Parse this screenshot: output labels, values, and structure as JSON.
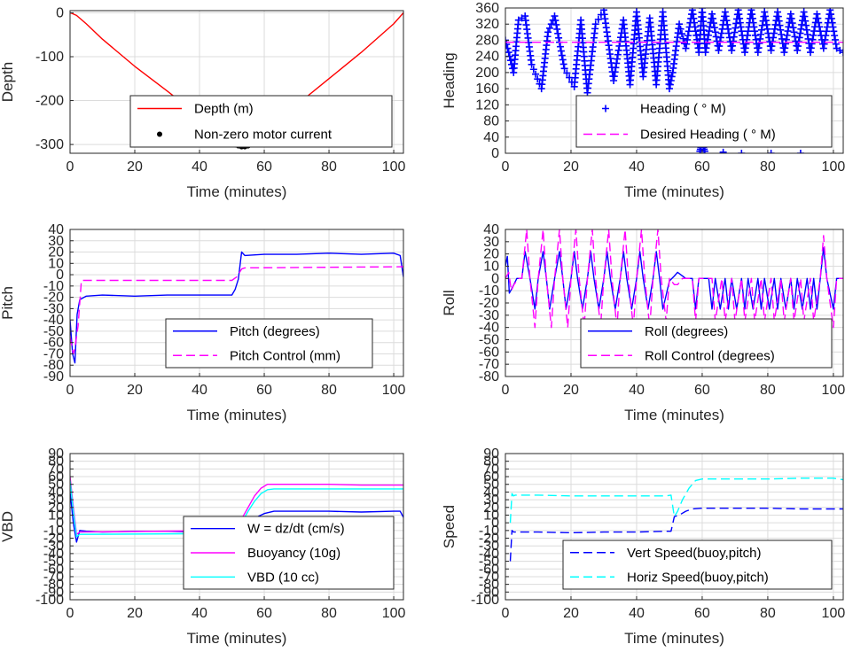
{
  "chart_data": [
    {
      "type": "line",
      "ylabel": "Depth",
      "xlabel": "Time (minutes)",
      "xlim": [
        0,
        103
      ],
      "ylim": [
        -320,
        5
      ],
      "xticks": [
        0,
        20,
        40,
        60,
        80,
        100
      ],
      "yticks": [
        0,
        -100,
        -200,
        -300
      ],
      "grid": true,
      "legend_position": "bottom-center",
      "series": [
        {
          "name": "Depth (m)",
          "style": "solid",
          "color": "#ff0000",
          "x": [
            0,
            0.5,
            2,
            5,
            10,
            20,
            30,
            40,
            48,
            51,
            53,
            54,
            55,
            58,
            60,
            70,
            80,
            90,
            100,
            103
          ],
          "y": [
            0,
            -1,
            -6,
            -25,
            -60,
            -122,
            -178,
            -236,
            -282,
            -300,
            -305,
            -303,
            -300,
            -288,
            -275,
            -210,
            -150,
            -90,
            -25,
            0
          ]
        },
        {
          "name": "Non-zero motor current",
          "style": "dots",
          "color": "#000000",
          "x": [
            51,
            52,
            53,
            54,
            55,
            56,
            57,
            58.5
          ],
          "y": [
            -301,
            -303,
            -305,
            -305,
            -303,
            -300,
            -296,
            -288
          ]
        }
      ]
    },
    {
      "type": "line",
      "ylabel": "Heading",
      "xlabel": "Time (minutes)",
      "xlim": [
        0,
        103
      ],
      "ylim": [
        0,
        360
      ],
      "xticks": [
        0,
        20,
        40,
        60,
        80,
        100
      ],
      "yticks": [
        0,
        40,
        80,
        120,
        160,
        200,
        240,
        280,
        320,
        360
      ],
      "grid": true,
      "legend_position": "bottom-right",
      "series": [
        {
          "name": "Heading ( ° M)",
          "style": "plus",
          "color": "#0000ff",
          "x": [
            0,
            1,
            2.5,
            4,
            6,
            8,
            11,
            13,
            15,
            18,
            21,
            23,
            25,
            27.5,
            30,
            33,
            36,
            38,
            40,
            42,
            44,
            46,
            48,
            50,
            51,
            53,
            55,
            57,
            59,
            60,
            61,
            63,
            65,
            67,
            69,
            71,
            73,
            75,
            77,
            79,
            81,
            83,
            85,
            87,
            89,
            91,
            93,
            95,
            97,
            99,
            101,
            103
          ],
          "y": [
            280,
            250,
            200,
            330,
            340,
            220,
            160,
            300,
            340,
            210,
            165,
            330,
            150,
            320,
            355,
            180,
            330,
            170,
            350,
            190,
            335,
            170,
            350,
            160,
            200,
            320,
            260,
            355,
            250,
            360,
            250,
            345,
            255,
            350,
            255,
            355,
            250,
            355,
            250,
            350,
            255,
            350,
            250,
            345,
            255,
            350,
            250,
            345,
            260,
            355,
            260,
            250
          ]
        },
        {
          "name": "Heading ( ° M)",
          "style": "plus",
          "color": "#0000ff",
          "x": [
            59.3,
            59.6,
            60,
            60.4,
            60.8,
            72,
            90
          ],
          "y": [
            5,
            15,
            30,
            15,
            5,
            0,
            0
          ]
        },
        {
          "name": "Desired Heading (   ° M)",
          "style": "dash",
          "color": "#ff00ff",
          "x": [
            0,
            103
          ],
          "y": [
            275,
            275
          ]
        }
      ]
    },
    {
      "type": "line",
      "ylabel": "Pitch",
      "xlabel": "Time (minutes)",
      "xlim": [
        0,
        103
      ],
      "ylim": [
        -90,
        40
      ],
      "xticks": [
        0,
        20,
        40,
        60,
        80,
        100
      ],
      "yticks": [
        40,
        30,
        20,
        10,
        0,
        -10,
        -20,
        -30,
        -40,
        -50,
        -60,
        -70,
        -80,
        -90
      ],
      "grid": true,
      "legend_position": "bottom-right",
      "series": [
        {
          "name": "Pitch (degrees)",
          "style": "solid",
          "color": "#0000ff",
          "x": [
            0,
            0.8,
            1.5,
            2.2,
            3,
            5,
            10,
            20,
            30,
            40,
            50,
            51,
            52,
            53,
            54,
            60,
            70,
            80,
            90,
            100,
            102,
            103
          ],
          "y": [
            -40,
            -70,
            -78,
            -35,
            -22,
            -19,
            -18,
            -19,
            -18,
            -18,
            -18,
            -13,
            -4,
            20,
            17,
            18,
            18,
            19,
            18,
            19,
            17,
            -2
          ]
        },
        {
          "name": "Pitch Control (mm)",
          "style": "dash",
          "color": "#ff00ff",
          "x": [
            0,
            1,
            1.5,
            2.5,
            3.5,
            10,
            50,
            51.5,
            53,
            54,
            103
          ],
          "y": [
            -55,
            -70,
            -65,
            -45,
            -5,
            -5,
            -5,
            -2,
            5,
            6,
            7
          ]
        }
      ]
    },
    {
      "type": "line",
      "ylabel": "Roll",
      "xlabel": "Time (minutes)",
      "xlim": [
        0,
        103
      ],
      "ylim": [
        -80,
        40
      ],
      "xticks": [
        0,
        20,
        40,
        60,
        80,
        100
      ],
      "yticks": [
        40,
        30,
        20,
        10,
        0,
        -10,
        -20,
        -30,
        -40,
        -50,
        -60,
        -70,
        -80
      ],
      "grid": true,
      "legend_position": "bottom-right",
      "series": [
        {
          "name": "Roll (degrees)",
          "style": "solid",
          "color": "#0000ff",
          "x": [
            0,
            0.6,
            1.2,
            2,
            3.5,
            5,
            6,
            7.5,
            9,
            10,
            11.5,
            12.5,
            13.5,
            15,
            16.5,
            17.5,
            18.5,
            20,
            21,
            22,
            23.5,
            25,
            26,
            27,
            28.5,
            30,
            31,
            32,
            33.5,
            35,
            36,
            37,
            38.5,
            40,
            41,
            42,
            43.5,
            45,
            46,
            47,
            48,
            50,
            51.5,
            52.5,
            55,
            57,
            58,
            59,
            62,
            63,
            64,
            65.5,
            67,
            68,
            69,
            70.5,
            72,
            73,
            74,
            75.5,
            77,
            78,
            79,
            80.5,
            82,
            83,
            84,
            85.5,
            87,
            88,
            89,
            90.5,
            92,
            93,
            94,
            95,
            96,
            97,
            98,
            100,
            101,
            102,
            103
          ],
          "y": [
            10,
            18,
            -12,
            -8,
            0,
            0,
            22,
            0,
            -25,
            0,
            22,
            0,
            -25,
            0,
            22,
            0,
            -25,
            0,
            22,
            0,
            -25,
            0,
            22,
            0,
            -25,
            0,
            22,
            0,
            -25,
            0,
            22,
            0,
            -25,
            0,
            22,
            0,
            -25,
            0,
            22,
            0,
            -25,
            -2,
            2,
            5,
            0,
            0,
            -25,
            0,
            0,
            -25,
            0,
            -25,
            0,
            -25,
            0,
            -25,
            0,
            -25,
            0,
            -25,
            0,
            -25,
            0,
            -25,
            0,
            -25,
            0,
            -25,
            0,
            -25,
            0,
            -25,
            0,
            -25,
            0,
            -25,
            0,
            25,
            0,
            -25,
            0,
            0,
            0
          ]
        },
        {
          "name": "Roll Control (degrees)",
          "style": "dash",
          "color": "#ff00ff",
          "x": [
            0,
            1,
            1.8,
            2.6,
            4,
            5,
            6.5,
            7.5,
            9,
            10,
            11.5,
            12.5,
            14,
            15,
            16.5,
            17.5,
            19,
            20,
            21.5,
            22.5,
            24,
            25,
            26.5,
            27.5,
            29,
            30,
            31.5,
            32.5,
            34,
            35,
            36.5,
            37.5,
            39,
            40,
            41.5,
            42.5,
            44,
            45,
            46.5,
            47.5,
            49,
            50,
            51.5,
            52.5,
            54,
            57,
            58,
            59,
            63,
            64,
            66,
            67,
            69,
            70,
            72,
            73,
            75,
            76,
            78,
            79,
            81,
            82,
            84,
            85,
            87,
            88,
            90,
            91,
            93,
            94,
            96,
            97,
            98,
            100,
            101,
            103
          ],
          "y": [
            0,
            5,
            -10,
            -5,
            0,
            0,
            40,
            0,
            -40,
            0,
            40,
            0,
            -40,
            0,
            40,
            0,
            -40,
            0,
            40,
            0,
            -40,
            0,
            40,
            0,
            -40,
            0,
            40,
            0,
            -40,
            0,
            40,
            0,
            -40,
            0,
            40,
            0,
            -40,
            0,
            40,
            0,
            -35,
            0,
            -5,
            -5,
            0,
            0,
            -35,
            0,
            0,
            -35,
            0,
            -35,
            0,
            -35,
            0,
            -35,
            0,
            -35,
            0,
            -35,
            0,
            -35,
            0,
            -35,
            0,
            -35,
            0,
            -35,
            0,
            -35,
            0,
            35,
            0,
            -40,
            0,
            0
          ]
        }
      ]
    },
    {
      "type": "line",
      "ylabel": "VBD",
      "xlabel": "Time (minutes)",
      "xlim": [
        0,
        103
      ],
      "ylim": [
        -100,
        90
      ],
      "xticks": [
        0,
        20,
        40,
        60,
        80,
        100
      ],
      "yticks": [
        90,
        80,
        70,
        60,
        50,
        40,
        30,
        20,
        10,
        0,
        -10,
        -20,
        -30,
        -40,
        -50,
        -60,
        -70,
        -80,
        -90,
        -100
      ],
      "grid": true,
      "legend_position": "bottom-center",
      "series": [
        {
          "name": "W = dz/dt (cm/s)",
          "style": "solid",
          "color": "#0000ff",
          "x": [
            0,
            1,
            2,
            3,
            5,
            10,
            20,
            30,
            40,
            49,
            51,
            53,
            55,
            58,
            60,
            63,
            70,
            80,
            90,
            100,
            102,
            103
          ],
          "y": [
            40,
            0,
            -25,
            -10,
            -11,
            -12,
            -11,
            -11,
            -12,
            -11,
            -10,
            -5,
            2,
            8,
            12,
            15,
            15,
            15,
            14,
            15,
            15,
            7
          ]
        },
        {
          "name": "Buoyancy (10g)",
          "style": "solid",
          "color": "#ff00ff",
          "x": [
            0,
            1,
            2,
            3,
            50,
            51,
            53,
            55,
            57,
            59,
            61,
            63,
            70,
            80,
            90,
            103
          ],
          "y": [
            60,
            20,
            -15,
            -12,
            -10,
            -8,
            5,
            20,
            35,
            45,
            50,
            50,
            50,
            50,
            49,
            49
          ]
        },
        {
          "name": "VBD (10 cc)",
          "style": "solid",
          "color": "#00ffff",
          "x": [
            0,
            1,
            2,
            3,
            50,
            51,
            53,
            55,
            57,
            59,
            61,
            63,
            70,
            80,
            90,
            103
          ],
          "y": [
            55,
            15,
            -18,
            -15,
            -14,
            -12,
            0,
            15,
            28,
            38,
            43,
            44,
            44,
            44,
            44,
            44
          ]
        }
      ]
    },
    {
      "type": "line",
      "ylabel": "Speed",
      "xlabel": "Time (minutes)",
      "xlim": [
        0,
        103
      ],
      "ylim": [
        -100,
        90
      ],
      "xticks": [
        0,
        20,
        40,
        60,
        80,
        100
      ],
      "yticks": [
        90,
        80,
        70,
        60,
        50,
        40,
        30,
        20,
        10,
        0,
        -10,
        -20,
        -30,
        -40,
        -50,
        -60,
        -70,
        -80,
        -90,
        -100
      ],
      "grid": true,
      "legend_position": "bottom-right",
      "series": [
        {
          "name": "Vert Speed(buoy,pitch)",
          "style": "dash",
          "color": "#0000ff",
          "x": [
            1.5,
            2,
            2.5,
            3,
            10,
            20,
            30,
            40,
            49,
            50.5,
            51.5,
            53,
            55,
            57,
            60,
            70,
            80,
            90,
            100,
            103
          ],
          "y": [
            -50,
            -10,
            -12,
            -12,
            -12,
            -13,
            -12,
            -12,
            -11,
            -11,
            8,
            10,
            15,
            18,
            19,
            19,
            19,
            18,
            18,
            18
          ]
        },
        {
          "name": "Horiz Speed(buoy,pitch)",
          "style": "dash",
          "color": "#00ffff",
          "x": [
            1.5,
            2,
            2.5,
            3,
            10,
            20,
            30,
            40,
            49,
            50.5,
            51.5,
            52.5,
            54,
            56,
            58,
            60,
            70,
            80,
            90,
            100,
            103
          ],
          "y": [
            0,
            38,
            35,
            36,
            36,
            35,
            35,
            35,
            35,
            36,
            8,
            15,
            30,
            45,
            55,
            57,
            57,
            57,
            58,
            58,
            56
          ]
        }
      ]
    }
  ]
}
